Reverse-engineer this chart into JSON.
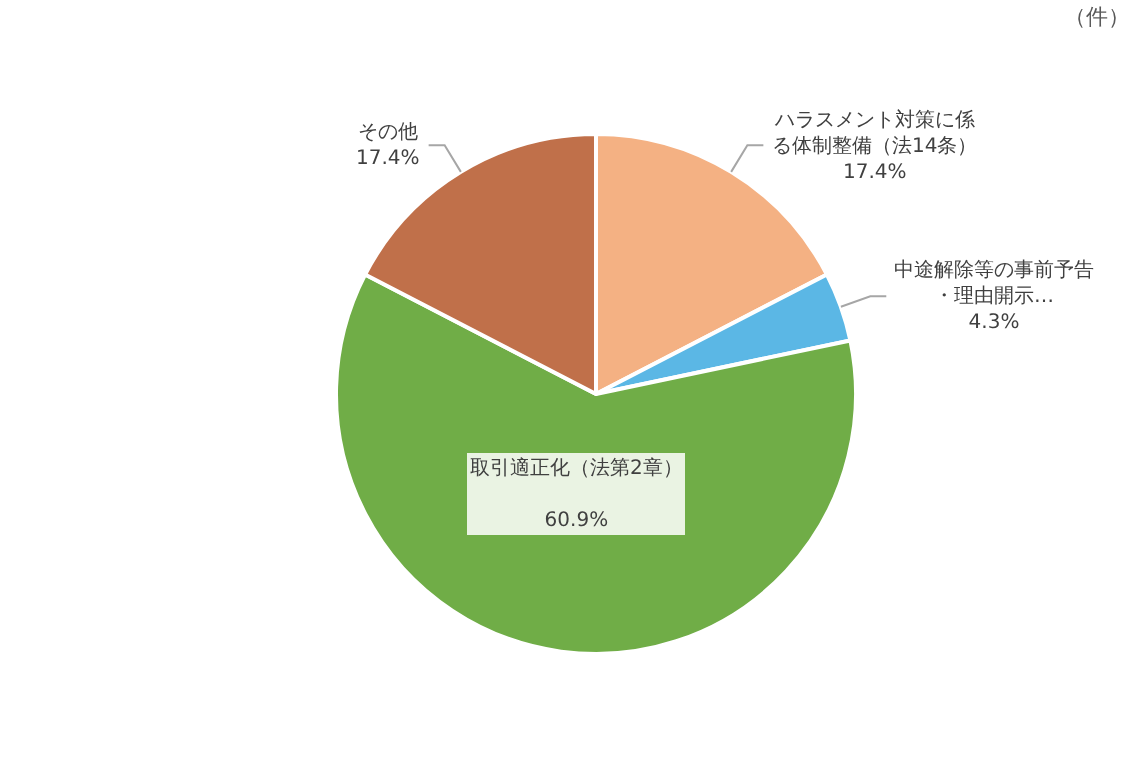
{
  "chart_data": {
    "type": "pie",
    "categories": [
      "ハラスメント対策に係る体制整備（法14条）",
      "中途解除等の事前予告・理由開示…",
      "取引適正化（法第2章）",
      "その他"
    ],
    "values": [
      17.4,
      4.3,
      60.9,
      17.4
    ],
    "value_labels": [
      "17.4%",
      "4.3%",
      "60.9%",
      "17.4%"
    ],
    "colors": [
      "#f4b183",
      "#5bb7e5",
      "#70ad47",
      "#c0704a"
    ],
    "annotations": [
      "（件）"
    ],
    "legend": false
  }
}
